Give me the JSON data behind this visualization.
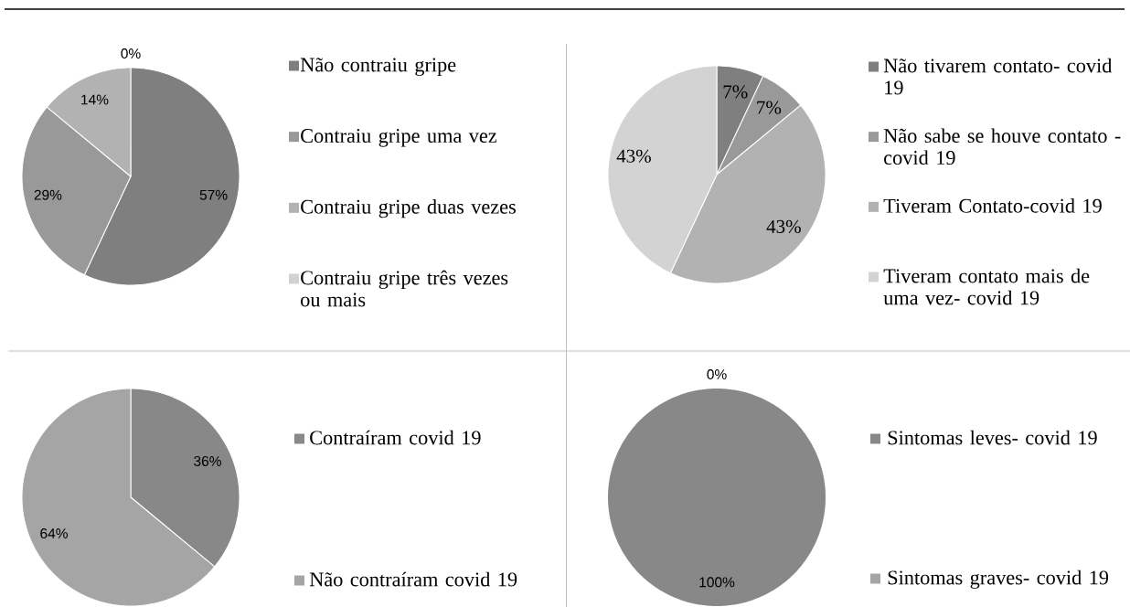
{
  "chart_data": [
    {
      "type": "pie",
      "categories": [
        "Não contraiu gripe",
        "Contraiu gripe uma vez",
        "Contraiu gripe duas vezes",
        "Contraiu gripe três vezes ou mais"
      ],
      "values": [
        57,
        29,
        14,
        0
      ],
      "colors": [
        "#7f7f7f",
        "#999999",
        "#b2b2b2",
        "#d2d2d2"
      ],
      "value_labels": [
        "57%",
        "29%",
        "14%",
        "0%"
      ],
      "legend": "right"
    },
    {
      "type": "pie",
      "categories": [
        "Não tivarem contato- covid 19",
        "Não sabe se houve contato - covid 19",
        "Tiveram Contato-covid 19",
        "Tiveram contato mais de uma vez- covid 19"
      ],
      "values": [
        7,
        7,
        43,
        43
      ],
      "colors": [
        "#7f7f7f",
        "#999999",
        "#b2b2b2",
        "#d3d3d3"
      ],
      "value_labels": [
        "7%",
        "7%",
        "43%",
        "43%"
      ],
      "legend": "right"
    },
    {
      "type": "pie",
      "categories": [
        "Contraíram covid 19",
        "Não contraíram covid 19"
      ],
      "values": [
        36,
        64
      ],
      "colors": [
        "#888888",
        "#a5a5a5"
      ],
      "value_labels": [
        "36%",
        "64%"
      ],
      "legend": "right"
    },
    {
      "type": "pie",
      "categories": [
        "Sintomas leves- covid 19",
        "Sintomas graves- covid 19"
      ],
      "values": [
        100,
        0
      ],
      "colors": [
        "#888888",
        "#a5a5a5"
      ],
      "value_labels": [
        "100%",
        "0%"
      ],
      "legend": "right"
    }
  ]
}
